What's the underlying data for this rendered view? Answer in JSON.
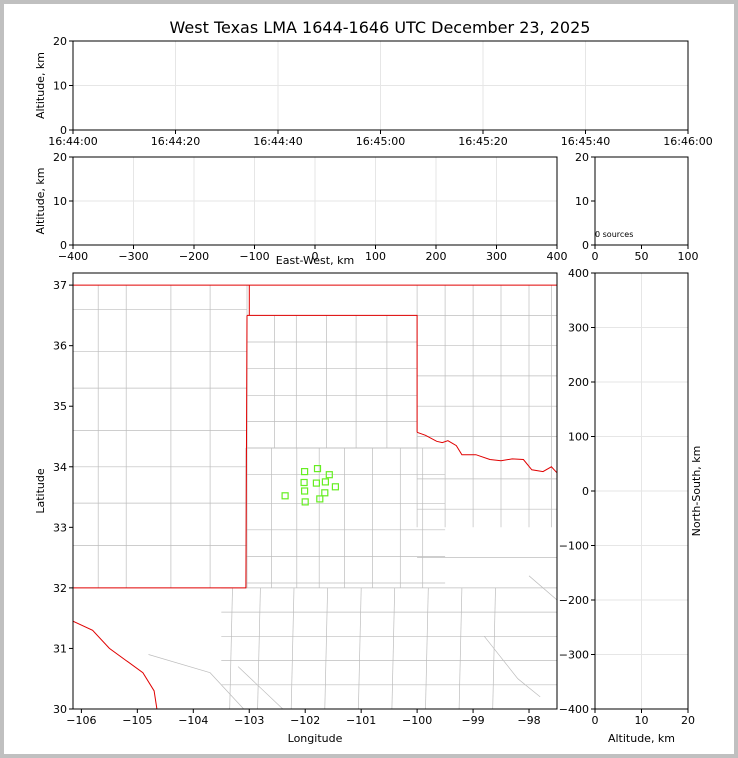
{
  "title": "West Texas LMA 1644-1646 UTC December 23, 2025",
  "colors": {
    "border_red": "#e00000",
    "county_gray": "#bdbdbd",
    "source_green": "#66ee22",
    "grid": "#e6e6e6"
  },
  "chart_data": [
    {
      "type": "scatter",
      "panel": "altitude-vs-time",
      "ylabel": "Altitude, km",
      "ylim": [
        0,
        20
      ],
      "yticks": [
        "0",
        "10",
        "20"
      ],
      "xticks": [
        "16:44:00",
        "16:44:20",
        "16:44:40",
        "16:45:00",
        "16:45:20",
        "16:45:40",
        "16:46:00"
      ],
      "grid": true,
      "points": []
    },
    {
      "type": "scatter",
      "panel": "altitude-vs-east-west",
      "xlabel": "East-West, km",
      "ylabel": "Altitude, km",
      "xlim": [
        -400,
        400
      ],
      "ylim": [
        0,
        20
      ],
      "xticks": [
        "−400",
        "−300",
        "−200",
        "−100",
        "0",
        "100",
        "200",
        "300",
        "400"
      ],
      "yticks": [
        "0",
        "10",
        "20"
      ],
      "grid": true,
      "points": []
    },
    {
      "type": "bar",
      "panel": "source-histogram",
      "xlim": [
        0,
        100
      ],
      "ylim": [
        0,
        20
      ],
      "xticks": [
        "0",
        "50",
        "100"
      ],
      "yticks": [
        "0",
        "10",
        "20"
      ],
      "annotation": "0 sources",
      "values": []
    },
    {
      "type": "scatter",
      "panel": "plan-view-map",
      "xlabel": "Longitude",
      "ylabel": "Latitude",
      "xlim": [
        -106.15,
        -97.5
      ],
      "ylim": [
        30,
        37.2
      ],
      "xticks": [
        "−106",
        "−105",
        "−104",
        "−103",
        "−102",
        "−101",
        "−100",
        "−99",
        "−98"
      ],
      "yticks": [
        "30",
        "31",
        "32",
        "33",
        "34",
        "35",
        "36",
        "37"
      ],
      "grid": false,
      "series": [
        {
          "marker": "square",
          "points": [
            {
              "x": -102.36,
              "y": 33.52
            },
            {
              "x": -102.01,
              "y": 33.92
            },
            {
              "x": -102.02,
              "y": 33.74
            },
            {
              "x": -102.01,
              "y": 33.6
            },
            {
              "x": -102.0,
              "y": 33.42
            },
            {
              "x": -101.78,
              "y": 33.97
            },
            {
              "x": -101.8,
              "y": 33.73
            },
            {
              "x": -101.74,
              "y": 33.47
            },
            {
              "x": -101.64,
              "y": 33.75
            },
            {
              "x": -101.65,
              "y": 33.57
            },
            {
              "x": -101.57,
              "y": 33.87
            },
            {
              "x": -101.46,
              "y": 33.67
            }
          ]
        }
      ]
    },
    {
      "type": "scatter",
      "panel": "altitude-vs-north-south",
      "xlabel": "Altitude, km",
      "ylabel": "North-South, km",
      "xlim": [
        0,
        20
      ],
      "ylim": [
        -400,
        400
      ],
      "xticks": [
        "0",
        "10",
        "20"
      ],
      "yticks": [
        "−400",
        "−300",
        "−200",
        "−100",
        "0",
        "100",
        "200",
        "300",
        "400"
      ],
      "grid": true,
      "points": []
    }
  ]
}
